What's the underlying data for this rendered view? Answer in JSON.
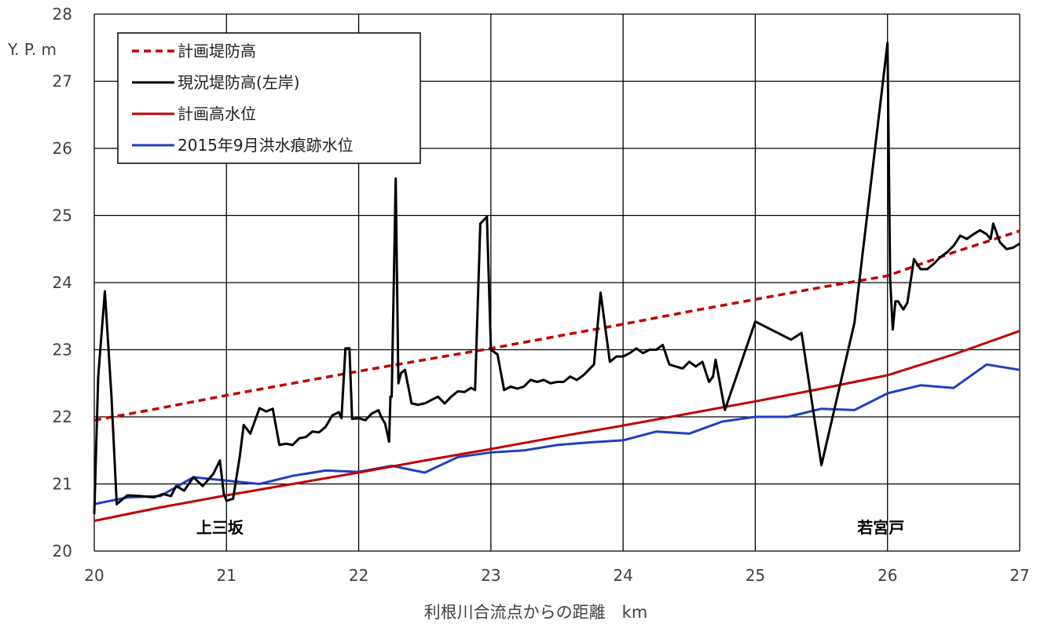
{
  "chart_data": {
    "type": "line",
    "xlabel": "利根川合流点からの距離　km",
    "ylabel": "Y. P. m",
    "xlim": [
      20,
      27
    ],
    "ylim": [
      20,
      28
    ],
    "xticks": [
      "20",
      "21",
      "22",
      "23",
      "24",
      "25",
      "26",
      "27"
    ],
    "yticks": [
      "20",
      "21",
      "22",
      "23",
      "24",
      "25",
      "26",
      "27",
      "28"
    ],
    "grid": true,
    "legend_position": "top-left",
    "annotations": [
      {
        "text": "上三坂",
        "x": 20.95,
        "y": 20.35
      },
      {
        "text": "若宮戸",
        "x": 25.95,
        "y": 20.35
      }
    ],
    "series": [
      {
        "name": "計画堤防高",
        "color": "#c00000",
        "style": "dashed",
        "x": [
          20,
          20.5,
          21,
          21.5,
          22,
          22.5,
          23,
          23.5,
          24,
          24.5,
          25,
          25.5,
          26,
          26.5,
          27
        ],
        "y": [
          21.95,
          22.13,
          22.32,
          22.5,
          22.68,
          22.85,
          23.02,
          23.2,
          23.38,
          23.57,
          23.75,
          23.93,
          24.1,
          24.45,
          24.77
        ]
      },
      {
        "name": "現況堤防高(左岸)",
        "color": "#000000",
        "style": "solid",
        "x": [
          20,
          20.03,
          20.08,
          20.13,
          20.17,
          20.25,
          20.35,
          20.45,
          20.52,
          20.58,
          20.62,
          20.68,
          20.75,
          20.82,
          20.9,
          20.95,
          20.98,
          21.0,
          21.05,
          21.1,
          21.13,
          21.18,
          21.25,
          21.3,
          21.35,
          21.4,
          21.45,
          21.5,
          21.55,
          21.6,
          21.65,
          21.7,
          21.75,
          21.8,
          21.85,
          21.87,
          21.9,
          21.93,
          21.95,
          22.0,
          22.05,
          22.1,
          22.13,
          22.15,
          22.17,
          22.2,
          22.23,
          22.24,
          22.25,
          22.28,
          22.3,
          22.32,
          22.35,
          22.4,
          22.45,
          22.5,
          22.55,
          22.6,
          22.65,
          22.7,
          22.75,
          22.8,
          22.85,
          22.88,
          22.92,
          22.97,
          23.0,
          23.05,
          23.1,
          23.15,
          23.2,
          23.25,
          23.3,
          23.35,
          23.4,
          23.45,
          23.5,
          23.55,
          23.6,
          23.65,
          23.7,
          23.73,
          23.75,
          23.78,
          23.83,
          23.9,
          23.95,
          24.0,
          24.05,
          24.1,
          24.15,
          24.2,
          24.25,
          24.3,
          24.35,
          24.4,
          24.45,
          24.5,
          24.55,
          24.6,
          24.65,
          24.68,
          24.7,
          24.77,
          25.0,
          25.27,
          25.35,
          25.5,
          25.75,
          26.0,
          26.02,
          26.04,
          26.06,
          26.08,
          26.12,
          26.15,
          26.2,
          26.25,
          26.3,
          26.35,
          26.4,
          26.45,
          26.5,
          26.55,
          26.6,
          26.65,
          26.7,
          26.75,
          26.78,
          26.8,
          26.85,
          26.9,
          26.95,
          27.0
        ],
        "y": [
          20.55,
          22.6,
          23.87,
          22.3,
          20.7,
          20.83,
          20.82,
          20.8,
          20.85,
          20.82,
          20.97,
          20.9,
          21.1,
          20.97,
          21.15,
          21.35,
          20.85,
          20.75,
          20.78,
          21.4,
          21.88,
          21.75,
          22.13,
          22.08,
          22.12,
          21.58,
          21.6,
          21.58,
          21.68,
          21.7,
          21.78,
          21.77,
          21.85,
          22.02,
          22.07,
          21.98,
          23.02,
          23.02,
          21.97,
          21.98,
          21.95,
          22.05,
          22.08,
          22.1,
          22.0,
          21.9,
          21.63,
          22.3,
          22.3,
          25.55,
          22.5,
          22.65,
          22.7,
          22.2,
          22.18,
          22.2,
          22.25,
          22.3,
          22.2,
          22.3,
          22.38,
          22.37,
          22.43,
          22.4,
          24.88,
          24.98,
          23.0,
          22.93,
          22.4,
          22.45,
          22.42,
          22.45,
          22.55,
          22.52,
          22.55,
          22.5,
          22.52,
          22.52,
          22.6,
          22.55,
          22.62,
          22.68,
          22.72,
          22.78,
          23.85,
          22.82,
          22.9,
          22.9,
          22.95,
          23.02,
          22.95,
          23.0,
          23.0,
          23.07,
          22.78,
          22.75,
          22.72,
          22.82,
          22.75,
          22.82,
          22.52,
          22.6,
          22.85,
          22.1,
          23.42,
          23.15,
          23.25,
          21.28,
          23.4,
          27.57,
          24.05,
          23.3,
          23.72,
          23.72,
          23.6,
          23.7,
          24.35,
          24.2,
          24.2,
          24.28,
          24.38,
          24.45,
          24.55,
          24.7,
          24.65,
          24.72,
          24.78,
          24.72,
          24.65,
          24.88,
          24.6,
          24.5,
          24.52,
          24.58
        ]
      },
      {
        "name": "計画高水位",
        "color": "#c00000",
        "style": "solid",
        "x": [
          20,
          20.5,
          21,
          21.5,
          22,
          22.5,
          23,
          23.5,
          24,
          24.5,
          25,
          25.5,
          26,
          26.5,
          27
        ],
        "y": [
          20.45,
          20.65,
          20.83,
          21.0,
          21.17,
          21.35,
          21.52,
          21.7,
          21.87,
          22.05,
          22.23,
          22.42,
          22.62,
          22.93,
          23.28
        ]
      },
      {
        "name": "2015年9月洪水痕跡水位",
        "color": "#1f3fbf",
        "style": "solid",
        "x": [
          20,
          20.25,
          20.5,
          20.75,
          21.0,
          21.25,
          21.5,
          21.75,
          22.0,
          22.25,
          22.5,
          22.75,
          23.0,
          23.25,
          23.5,
          23.75,
          24.0,
          24.25,
          24.5,
          24.75,
          25.0,
          25.25,
          25.5,
          25.75,
          26.0,
          26.25,
          26.5,
          26.75,
          27.0
        ],
        "y": [
          20.7,
          20.8,
          20.82,
          21.1,
          21.05,
          21.0,
          21.12,
          21.2,
          21.18,
          21.27,
          21.17,
          21.4,
          21.47,
          21.5,
          21.58,
          21.62,
          21.65,
          21.78,
          21.75,
          21.93,
          22.0,
          22.0,
          22.12,
          22.1,
          22.35,
          22.47,
          22.43,
          22.78,
          22.7
        ]
      }
    ]
  }
}
